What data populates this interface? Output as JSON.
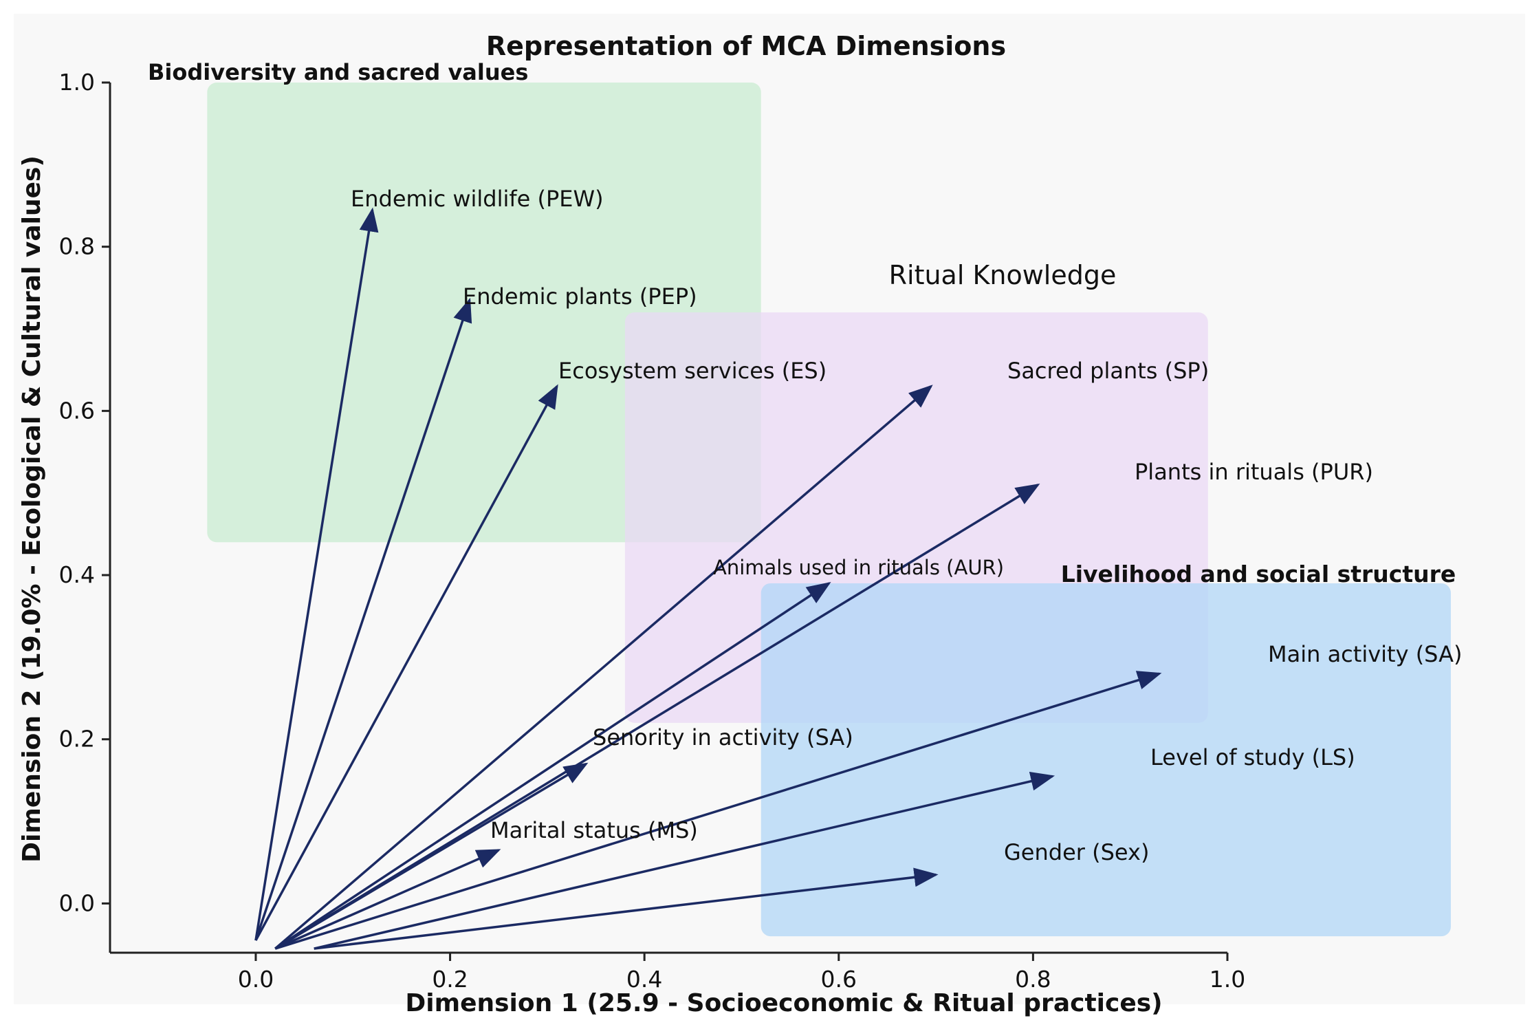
{
  "chart_data": {
    "type": "arrow-biplot",
    "title": "Representation of MCA Dimensions",
    "xlabel": "Dimension 1 (25.9 - Socioeconomic & Ritual practices)",
    "ylabel": "Dimension 2 (19.0% - Ecological & Cultural values)",
    "xlim": [
      -0.15,
      1.0
    ],
    "ylim": [
      -0.06,
      1.0
    ],
    "x_ticks": [
      0.0,
      0.2,
      0.4,
      0.6,
      0.8,
      1.0
    ],
    "x_tick_labels": [
      "0.0",
      "0.2",
      "0.4",
      "0.6",
      "0.8",
      "1.0"
    ],
    "y_ticks": [
      0.0,
      0.2,
      0.4,
      0.6,
      0.8,
      1.0
    ],
    "y_tick_labels": [
      "0.0",
      "0.2",
      "0.4",
      "0.6",
      "0.8",
      "1.0"
    ],
    "grid": false,
    "colors": {
      "arrow": "#1b2a63",
      "axis": "#222222",
      "text": "#111111",
      "region_biodiversity": "#c8ecd0",
      "region_ritual": "#ead8f5",
      "region_livelihood": "#aed6f6"
    },
    "regions": [
      {
        "label": "Biodiversity and sacred values",
        "x0": -0.05,
        "x1": 0.52,
        "y0": 0.44,
        "y1": 1.0,
        "color_key": "region_biodiversity"
      },
      {
        "label": "Ritual Knowledge",
        "x0": 0.38,
        "x1": 0.98,
        "y0": 0.22,
        "y1": 0.72,
        "color_key": "region_ritual"
      },
      {
        "label": "Livelihood and social structure",
        "x0": 0.52,
        "x1": 1.23,
        "y0": -0.04,
        "y1": 0.39,
        "color_key": "region_livelihood"
      }
    ],
    "arrows": [
      {
        "label": "Endemic wildlife (PEW)",
        "x0": 0.0,
        "y0": -0.045,
        "x1": 0.12,
        "y1": 0.845
      },
      {
        "label": "Endemic plants (PEP)",
        "x0": 0.0,
        "y0": -0.045,
        "x1": 0.22,
        "y1": 0.735
      },
      {
        "label": "Ecosystem services (ES)",
        "x0": 0.0,
        "y0": -0.045,
        "x1": 0.31,
        "y1": 0.63
      },
      {
        "label": "Sacred plants (SP)",
        "x0": 0.02,
        "y0": -0.055,
        "x1": 0.695,
        "y1": 0.63
      },
      {
        "label": "Plants in rituals (PUR)",
        "x0": 0.02,
        "y0": -0.055,
        "x1": 0.805,
        "y1": 0.51
      },
      {
        "label": "Animals used in rituals (AUR)",
        "x0": 0.02,
        "y0": -0.055,
        "x1": 0.59,
        "y1": 0.39
      },
      {
        "label": "Senority in activity (SA)",
        "x0": 0.02,
        "y0": -0.055,
        "x1": 0.34,
        "y1": 0.17
      },
      {
        "label": "Marital status (MS)",
        "x0": 0.02,
        "y0": -0.055,
        "x1": 0.25,
        "y1": 0.065
      },
      {
        "label": "Main activity (SA)",
        "x0": 0.02,
        "y0": -0.055,
        "x1": 0.93,
        "y1": 0.28
      },
      {
        "label": "Level of study (LS)",
        "x0": 0.06,
        "y0": -0.055,
        "x1": 0.82,
        "y1": 0.155
      },
      {
        "label": "Gender (Sex)",
        "x0": 0.06,
        "y0": -0.055,
        "x1": 0.7,
        "y1": 0.035
      }
    ]
  }
}
